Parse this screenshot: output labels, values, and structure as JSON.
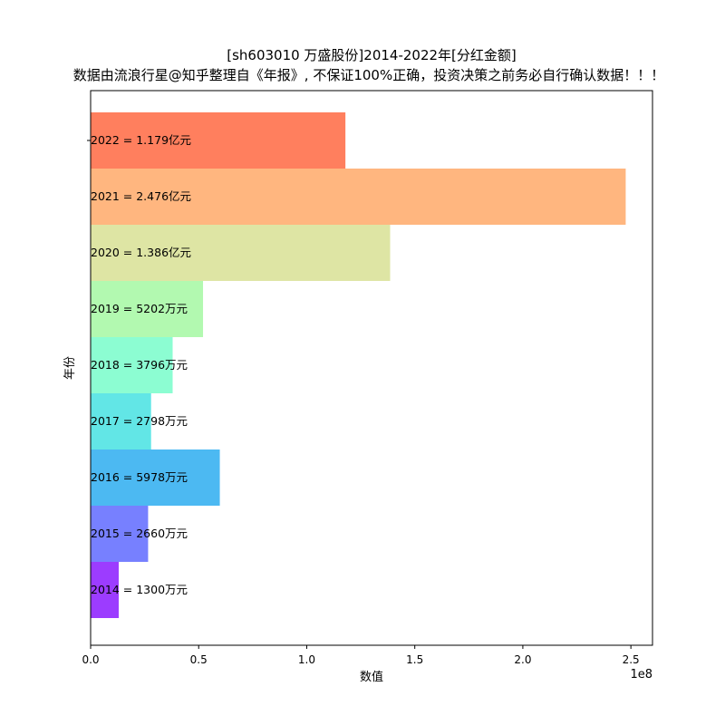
{
  "chart_data": {
    "type": "bar",
    "orientation": "horizontal",
    "title_line1": "[sh603010 万盛股份]2014-2022年[分红金额]",
    "title_line2": "数据由流浪行星@知乎整理自《年报》, 不保证100%正确，投资决策之前务必自行确认数据！！！",
    "xlabel": "数值",
    "ylabel": "年份",
    "x_scale_label": "1e8",
    "xlim": [
      0,
      2.6
    ],
    "x_ticks": [
      "0.0",
      "0.5",
      "1.0",
      "1.5",
      "2.0",
      "2.5"
    ],
    "x_tick_values": [
      0,
      0.5,
      1.0,
      1.5,
      2.0,
      2.5
    ],
    "grid": false,
    "bars": [
      {
        "category": "2022",
        "value": 1.179,
        "label": "2022 = 1.179亿元",
        "color": "#ff7f5e"
      },
      {
        "category": "2021",
        "value": 2.476,
        "label": "2021 = 2.476亿元",
        "color": "#ffb67f"
      },
      {
        "category": "2020",
        "value": 1.386,
        "label": "2020 = 1.386亿元",
        "color": "#dee5a4"
      },
      {
        "category": "2019",
        "value": 0.5202,
        "label": "2019 = 5202万元",
        "color": "#b2f9b0"
      },
      {
        "category": "2018",
        "value": 0.3796,
        "label": "2018 = 3796万元",
        "color": "#8cfdd2"
      },
      {
        "category": "2017",
        "value": 0.2798,
        "label": "2017 = 2798万元",
        "color": "#62e6e6"
      },
      {
        "category": "2016",
        "value": 0.5978,
        "label": "2016 = 5978万元",
        "color": "#4cb9f2"
      },
      {
        "category": "2015",
        "value": 0.266,
        "label": "2015 = 2660万元",
        "color": "#7780ff"
      },
      {
        "category": "2014",
        "value": 0.13,
        "label": "2014 = 1300万元",
        "color": "#9c3cff"
      }
    ]
  }
}
